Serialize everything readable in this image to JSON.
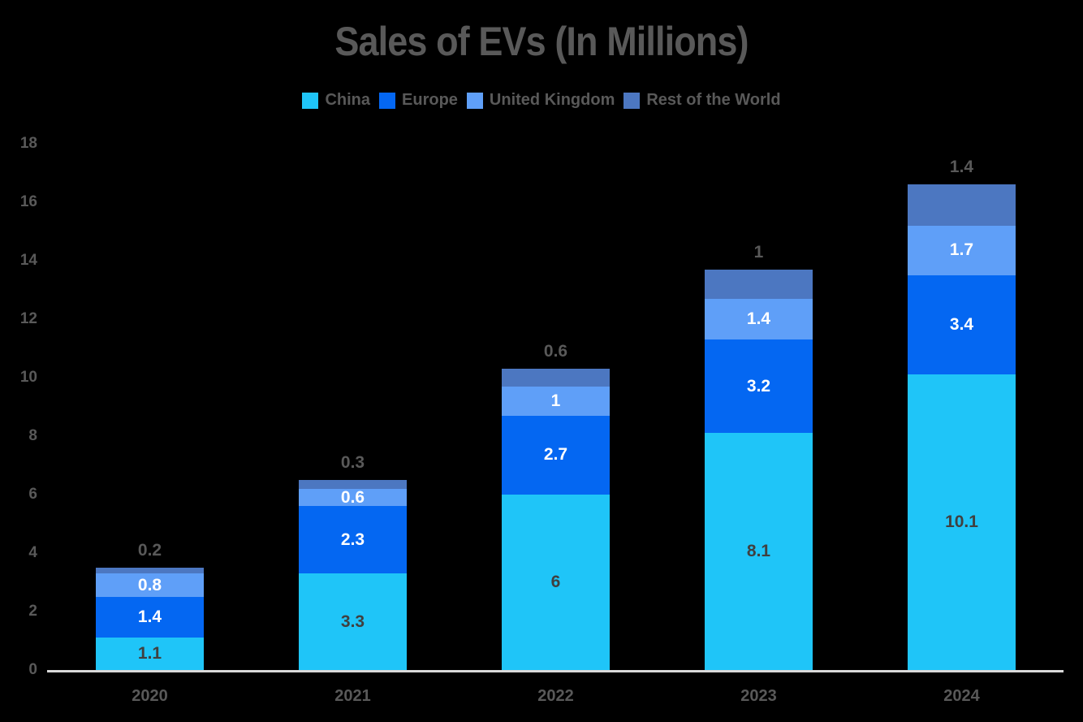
{
  "background_color": "#000000",
  "text_color": "#595959",
  "axis_line_color": "#D9D9D9",
  "chart_data": {
    "type": "bar",
    "stacked": true,
    "title": "Sales of EVs (In Millions)",
    "categories": [
      "2020",
      "2021",
      "2022",
      "2023",
      "2024"
    ],
    "series": [
      {
        "name": "China",
        "color": "#1FC5F8",
        "values": [
          1.1,
          3.3,
          6,
          8.1,
          10.1
        ],
        "label_color": "#404040",
        "label_position": "inside"
      },
      {
        "name": "Europe",
        "color": "#0467F2",
        "values": [
          1.4,
          2.3,
          2.7,
          3.2,
          3.4
        ],
        "label_color": "#FFFFFF",
        "label_position": "inside"
      },
      {
        "name": "United Kingdom",
        "color": "#5F9FF8",
        "values": [
          0.8,
          0.6,
          1,
          1.4,
          1.7
        ],
        "label_color": "#FFFFFF",
        "label_position": "inside"
      },
      {
        "name": "Rest of the World",
        "color": "#4C77C1",
        "values": [
          0.2,
          0.3,
          0.6,
          1,
          1.4
        ],
        "label_color": "#595959",
        "label_position": "above"
      }
    ],
    "totals": [
      3.5,
      6.5,
      10.3,
      13.7,
      16.6
    ],
    "ylim": [
      0,
      18
    ],
    "yticks": [
      0,
      2,
      4,
      6,
      8,
      10,
      12,
      14,
      16,
      18
    ],
    "grid": false,
    "legend_position": "top"
  }
}
